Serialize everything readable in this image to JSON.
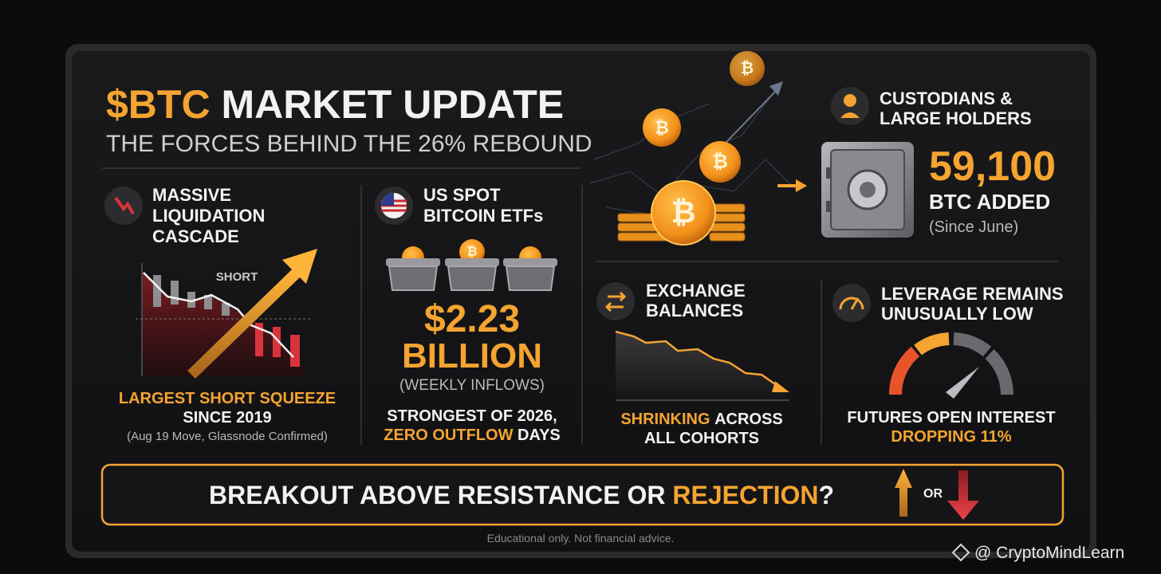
{
  "coin_symbol": "₿",
  "header": {
    "title_highlight": "$BTC",
    "title_rest": "MARKET UPDATE",
    "subtitle": "THE FORCES BEHIND THE 26% REBOUND"
  },
  "liquidation": {
    "title_lines": [
      "MASSIVE",
      "LIQUIDATION",
      "CASCADE"
    ],
    "chart_label": "SHORT",
    "caption_highlight": "LARGEST SHORT SQUEEZE",
    "caption": "SINCE 2019",
    "note": "(Aug 19 Move, Glassnode Confirmed)"
  },
  "etf": {
    "title_lines": [
      "US SPOT",
      "BITCOIN ETFs"
    ],
    "amount": "$2.23",
    "unit": "BILLION",
    "note": "(WEEKLY INFLOWS)",
    "caption": "STRONGEST OF 2026,",
    "caption_highlight": "ZERO OUTFLOW",
    "caption_rest": "DAYS"
  },
  "custodians": {
    "title_lines": [
      "CUSTODIANS &",
      "LARGE HOLDERS"
    ],
    "amount": "59,100",
    "unit": "BTC ADDED",
    "note": "(Since June)"
  },
  "exchange": {
    "title_lines": [
      "EXCHANGE",
      "BALANCES"
    ],
    "caption_highlight": "SHRINKING",
    "caption_rest": "ACROSS",
    "caption_line2": "ALL COHORTS"
  },
  "leverage": {
    "title_lines": [
      "LEVERAGE REMAINS",
      "UNUSUALLY LOW"
    ],
    "caption": "FUTURES OPEN INTEREST",
    "caption_highlight": "DROPPING 11%"
  },
  "banner": {
    "text": "BREAKOUT ABOVE RESISTANCE OR",
    "highlight": "REJECTION",
    "end": "?",
    "or": "OR"
  },
  "disclaimer": "Educational only. Not financial advice.",
  "watermark": "@ CryptoMindLearn"
}
